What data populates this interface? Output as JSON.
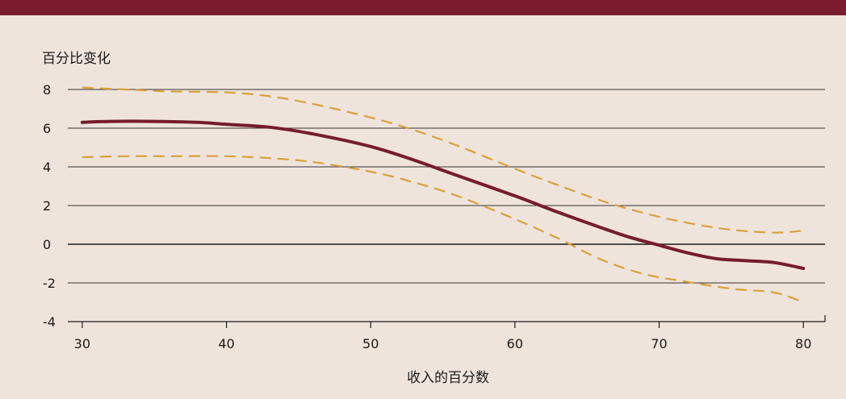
{
  "chart_data": {
    "type": "line",
    "title": "",
    "ylabel": "百分比变化",
    "xlabel": "收入的百分数",
    "xlim": [
      29,
      81.5
    ],
    "ylim": [
      -4,
      8
    ],
    "x_ticks": [
      30,
      40,
      50,
      60,
      70,
      80
    ],
    "y_ticks": [
      8,
      6,
      4,
      2,
      0,
      -2,
      -4
    ],
    "grid": "horizontal",
    "legend": "none",
    "colors": {
      "estimate": "#761c2c",
      "confidence_band": "#d9a03a",
      "background": "#efe4dc",
      "band": "#7a1c2b"
    },
    "series": [
      {
        "role": "estimate",
        "style": "solid",
        "x": [
          30,
          32,
          35,
          38,
          40,
          43,
          46,
          50,
          53,
          56,
          60,
          63,
          66,
          68,
          70,
          72,
          74,
          76,
          78,
          80
        ],
        "y": [
          6.3,
          6.35,
          6.35,
          6.3,
          6.2,
          6.05,
          5.7,
          5.05,
          4.35,
          3.55,
          2.5,
          1.65,
          0.85,
          0.35,
          -0.05,
          -0.45,
          -0.75,
          -0.85,
          -0.95,
          -1.25
        ]
      },
      {
        "role": "upper_bound",
        "style": "dashed",
        "x": [
          30,
          33,
          36,
          40,
          43,
          46,
          50,
          53,
          56,
          60,
          63,
          66,
          69,
          72,
          75,
          78,
          80
        ],
        "y": [
          8.1,
          8.0,
          7.9,
          7.85,
          7.65,
          7.25,
          6.55,
          5.9,
          5.1,
          3.9,
          3.05,
          2.25,
          1.6,
          1.1,
          0.75,
          0.6,
          0.7
        ]
      },
      {
        "role": "lower_bound",
        "style": "dashed",
        "x": [
          30,
          33,
          36,
          40,
          43,
          46,
          50,
          53,
          56,
          60,
          63,
          66,
          69,
          72,
          75,
          78,
          80
        ],
        "y": [
          4.5,
          4.55,
          4.55,
          4.55,
          4.45,
          4.25,
          3.75,
          3.2,
          2.5,
          1.3,
          0.3,
          -0.8,
          -1.55,
          -1.95,
          -2.3,
          -2.5,
          -3.0
        ]
      }
    ]
  }
}
